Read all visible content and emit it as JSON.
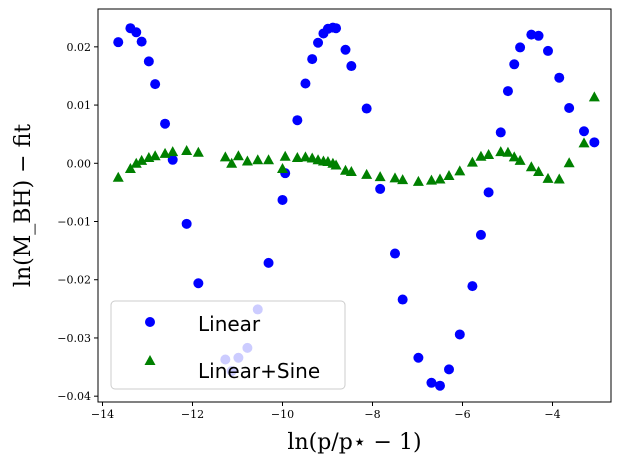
{
  "chart_data": {
    "type": "scatter",
    "xlabel": "ln(p/p⋆ − 1)",
    "ylabel": "ln(M_BH) − fit",
    "xlim": [
      -14.1,
      -2.7
    ],
    "ylim": [
      -0.041,
      0.0265
    ],
    "xticks": [
      {
        "value": -14,
        "label": "−14"
      },
      {
        "value": -12,
        "label": "−12"
      },
      {
        "value": -10,
        "label": "−10"
      },
      {
        "value": -8,
        "label": "−8"
      },
      {
        "value": -6,
        "label": "−6"
      },
      {
        "value": -4,
        "label": "−4"
      }
    ],
    "yticks": [
      {
        "value": 0.02,
        "label": "0.02"
      },
      {
        "value": 0.01,
        "label": "0.01"
      },
      {
        "value": 0.0,
        "label": "0.00"
      },
      {
        "value": -0.01,
        "label": "−0.01"
      },
      {
        "value": -0.02,
        "label": "−0.02"
      },
      {
        "value": -0.03,
        "label": "−0.03"
      },
      {
        "value": -0.04,
        "label": "−0.04"
      }
    ],
    "grid": false,
    "legend_position": "lower-left",
    "series": [
      {
        "name": "Linear",
        "marker": "circle",
        "color": "#0000ff",
        "points": [
          [
            -13.65,
            0.0208
          ],
          [
            -13.38,
            0.0232
          ],
          [
            -13.25,
            0.0225
          ],
          [
            -13.13,
            0.0209
          ],
          [
            -12.97,
            0.0175
          ],
          [
            -12.83,
            0.0136
          ],
          [
            -12.61,
            0.0068
          ],
          [
            -12.44,
            0.0006
          ],
          [
            -12.13,
            -0.0104
          ],
          [
            -11.87,
            -0.0206
          ],
          [
            -11.27,
            -0.0337
          ],
          [
            -11.13,
            -0.0357
          ],
          [
            -10.98,
            -0.0334
          ],
          [
            -10.78,
            -0.0317
          ],
          [
            -10.55,
            -0.0251
          ],
          [
            -10.31,
            -0.0171
          ],
          [
            -10.0,
            -0.0063
          ],
          [
            -9.94,
            -0.0017
          ],
          [
            -9.67,
            0.0074
          ],
          [
            -9.49,
            0.0137
          ],
          [
            -9.34,
            0.0179
          ],
          [
            -9.21,
            0.0207
          ],
          [
            -9.09,
            0.0223
          ],
          [
            -8.99,
            0.0231
          ],
          [
            -8.88,
            0.0233
          ],
          [
            -8.81,
            0.0232
          ],
          [
            -8.6,
            0.0195
          ],
          [
            -8.47,
            0.0167
          ],
          [
            -8.13,
            0.0094
          ],
          [
            -7.83,
            -0.0044
          ],
          [
            -7.5,
            -0.0155
          ],
          [
            -7.33,
            -0.0234
          ],
          [
            -6.98,
            -0.0334
          ],
          [
            -6.69,
            -0.0377
          ],
          [
            -6.5,
            -0.0382
          ],
          [
            -6.3,
            -0.0354
          ],
          [
            -6.06,
            -0.0294
          ],
          [
            -5.78,
            -0.0211
          ],
          [
            -5.59,
            -0.0123
          ],
          [
            -5.42,
            -0.005
          ],
          [
            -5.15,
            0.0053
          ],
          [
            -4.99,
            0.0124
          ],
          [
            -4.85,
            0.017
          ],
          [
            -4.72,
            0.0199
          ],
          [
            -4.47,
            0.0221
          ],
          [
            -4.31,
            0.0219
          ],
          [
            -4.1,
            0.0193
          ],
          [
            -3.85,
            0.0147
          ],
          [
            -3.63,
            0.0095
          ],
          [
            -3.3,
            0.0055
          ],
          [
            -3.07,
            0.0036
          ]
        ]
      },
      {
        "name": "Linear+Sine",
        "marker": "triangle",
        "color": "#008000",
        "points": [
          [
            -13.65,
            -0.0024
          ],
          [
            -13.38,
            -0.0009
          ],
          [
            -13.25,
            0.0
          ],
          [
            -13.13,
            0.0005
          ],
          [
            -12.97,
            0.001
          ],
          [
            -12.83,
            0.0013
          ],
          [
            -12.61,
            0.0017
          ],
          [
            -12.44,
            0.002
          ],
          [
            -12.13,
            0.0022
          ],
          [
            -11.87,
            0.0019
          ],
          [
            -11.27,
            0.0011
          ],
          [
            -11.13,
            0.0
          ],
          [
            -10.98,
            0.0013
          ],
          [
            -10.78,
            0.0004
          ],
          [
            -10.55,
            0.0006
          ],
          [
            -10.31,
            0.0006
          ],
          [
            -10.0,
            -0.0009
          ],
          [
            -9.94,
            0.0012
          ],
          [
            -9.67,
            0.001
          ],
          [
            -9.49,
            0.0011
          ],
          [
            -9.34,
            0.0009
          ],
          [
            -9.21,
            0.0006
          ],
          [
            -9.09,
            0.0004
          ],
          [
            -8.99,
            0.0003
          ],
          [
            -8.88,
            0.0
          ],
          [
            -8.81,
            -0.0003
          ],
          [
            -8.6,
            -0.0012
          ],
          [
            -8.47,
            -0.0014
          ],
          [
            -8.13,
            -0.0019
          ],
          [
            -7.83,
            -0.0023
          ],
          [
            -7.5,
            -0.0025
          ],
          [
            -7.33,
            -0.0028
          ],
          [
            -6.98,
            -0.0031
          ],
          [
            -6.69,
            -0.0029
          ],
          [
            -6.5,
            -0.0027
          ],
          [
            -6.3,
            -0.0021
          ],
          [
            -6.06,
            -0.0013
          ],
          [
            -5.78,
            0.0002
          ],
          [
            -5.59,
            0.0012
          ],
          [
            -5.42,
            0.0015
          ],
          [
            -5.15,
            0.002
          ],
          [
            -4.99,
            0.0019
          ],
          [
            -4.85,
            0.0011
          ],
          [
            -4.72,
            0.0005
          ],
          [
            -4.47,
            -0.0006
          ],
          [
            -4.31,
            -0.0014
          ],
          [
            -4.1,
            -0.0026
          ],
          [
            -3.85,
            -0.0027
          ],
          [
            -3.63,
            0.0001
          ],
          [
            -3.3,
            0.0035
          ],
          [
            -3.07,
            0.0114
          ]
        ]
      }
    ]
  }
}
